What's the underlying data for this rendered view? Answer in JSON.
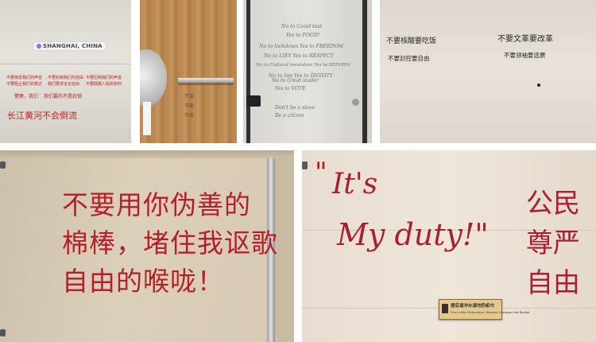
{
  "panel1": {
    "location_badge": "SHANGHAI, CHINA",
    "small_lines": [
      "不要抹去我们的声音",
      "不要封锁我们的自由",
      "不要压制我们的声音",
      "不要阻止我们的表达",
      "我们要求言论自由",
      "不要践踏人民的权利"
    ],
    "mid_lines": [
      "警察，我们",
      "我们要的不是封锁"
    ],
    "river_line": "长江黄河不会倒流"
  },
  "panel2": {
    "handwriting": [
      "不要",
      "不要",
      "不要"
    ]
  },
  "panel3": {
    "lines": [
      "No to Covid test",
      "Yes to FOOD!",
      "No to lockdown Yes to FREEDOM",
      "No to LIES Yes to RESPECT",
      "No to Cultural revolution Yes to REFORM",
      "No to Great leader",
      "Yes to VOTE",
      "No to lies Yes to DIGNITY",
      "Don't be a slave",
      "Be a citizen"
    ]
  },
  "panel4": {
    "left_lines": [
      "不要核酸要吃饭",
      "不要封控要自由"
    ],
    "right_lines": [
      "不要文革要改革",
      "不要领袖要选票"
    ]
  },
  "panel5": {
    "lines": [
      "不要用你伪善的",
      "棉棒，堵住我讴歌",
      "自由的喉咙！"
    ]
  },
  "panel6": {
    "quote_open": "\"",
    "line1": "It's",
    "line2": "My duty!\"",
    "right_col1": "公民",
    "right_col2": "尊严",
    "right_col3": "自由",
    "sign_title": "便后请冲水请勿扔纸巾",
    "sign_en": "Flush after Defecation, Dispose Garbage into Basket"
  },
  "colors": {
    "marker_red": "#b51e2a",
    "wood": "#b88650"
  }
}
